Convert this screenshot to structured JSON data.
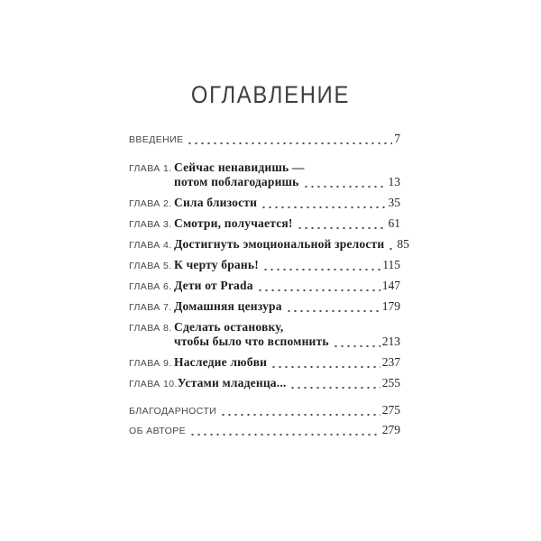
{
  "title": "ОГЛАВЛЕНИЕ",
  "intro": {
    "label": "ВВЕДЕНИЕ",
    "page": "7"
  },
  "chapters": [
    {
      "label": "ГЛАВА 1.",
      "line1": "Сейчас ненавидишь —",
      "line2": "потом поблагодаришь",
      "page": "13"
    },
    {
      "label": "ГЛАВА 2.",
      "line1": "Сила близости",
      "page": "35"
    },
    {
      "label": "ГЛАВА 3.",
      "line1": "Смотри, получается!",
      "page": "61"
    },
    {
      "label": "ГЛАВА 4.",
      "line1": "Достигнуть эмоциональной зрелости",
      "page": "85"
    },
    {
      "label": "ГЛАВА 5.",
      "line1": "К черту брань!",
      "page": "115"
    },
    {
      "label": "ГЛАВА 6.",
      "line1": "Дети от Prada",
      "page": "147"
    },
    {
      "label": "ГЛАВА 7.",
      "line1": "Домашняя цензура",
      "page": "179"
    },
    {
      "label": "ГЛАВА 8.",
      "line1": "Сделать остановку,",
      "line2": "чтобы было что вспомнить",
      "page": "213"
    },
    {
      "label": "ГЛАВА 9.",
      "line1": "Наследие любви",
      "page": "237"
    },
    {
      "label": "ГЛАВА 10.",
      "line1": "Устами младенца...",
      "page": "255"
    }
  ],
  "outro": [
    {
      "label": "БЛАГОДАРНОСТИ",
      "page": "275"
    },
    {
      "label": "ОБ АВТОРЕ",
      "page": "279"
    }
  ],
  "colors": {
    "background": "#ffffff",
    "label_text": "#474747",
    "title_text": "#3d3d3d",
    "chapter_title_text": "#1d1d1d",
    "page_number_text": "#262626",
    "dot_leader": "#4c4c4c"
  }
}
